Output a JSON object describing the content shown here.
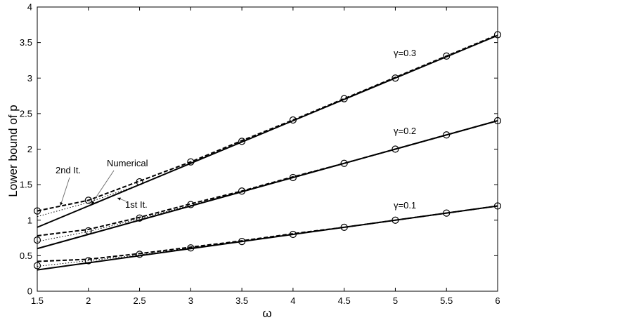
{
  "chart_data": {
    "type": "line",
    "xlabel": "ω",
    "ylabel": "Lower bound of p",
    "xlim": [
      1.5,
      6
    ],
    "ylim": [
      0,
      4
    ],
    "xticks": [
      "1.5",
      "2",
      "2.5",
      "3",
      "3.5",
      "4",
      "4.5",
      "5",
      "5.5",
      "6"
    ],
    "yticks": [
      "0",
      "0.5",
      "1",
      "1.5",
      "2",
      "2.5",
      "3",
      "3.5",
      "4"
    ],
    "grid": false,
    "x": [
      1.5,
      2,
      2.5,
      3,
      3.5,
      4,
      4.5,
      5,
      5.5,
      6
    ],
    "groups": [
      {
        "gamma_label": "γ=0.3",
        "numerical": [
          0.9,
          1.2,
          1.5,
          1.8,
          2.1,
          2.4,
          2.7,
          3.0,
          3.3,
          3.6
        ],
        "first_it": [
          1.05,
          1.25,
          1.5,
          1.8,
          2.1,
          2.4,
          2.7,
          3.0,
          3.3,
          3.6
        ],
        "second_it": [
          1.13,
          1.28,
          1.55,
          1.82,
          2.12,
          2.41,
          2.71,
          3.01,
          3.31,
          3.61
        ],
        "markers": [
          1.13,
          1.28,
          1.54,
          1.82,
          2.11,
          2.41,
          2.71,
          3.0,
          3.31,
          3.61
        ]
      },
      {
        "gamma_label": "γ=0.2",
        "numerical": [
          0.6,
          0.8,
          1.0,
          1.2,
          1.4,
          1.6,
          1.8,
          2.0,
          2.2,
          2.4
        ],
        "first_it": [
          0.7,
          0.84,
          1.02,
          1.21,
          1.4,
          1.6,
          1.8,
          2.0,
          2.2,
          2.4
        ],
        "second_it": [
          0.78,
          0.87,
          1.04,
          1.23,
          1.41,
          1.61,
          1.8,
          2.0,
          2.2,
          2.4
        ],
        "markers": [
          0.72,
          0.85,
          1.03,
          1.22,
          1.41,
          1.6,
          1.8,
          2.0,
          2.2,
          2.4
        ]
      },
      {
        "gamma_label": "γ=0.1",
        "numerical": [
          0.3,
          0.4,
          0.5,
          0.6,
          0.7,
          0.8,
          0.9,
          1.0,
          1.1,
          1.2
        ],
        "first_it": [
          0.35,
          0.43,
          0.51,
          0.61,
          0.7,
          0.8,
          0.9,
          1.0,
          1.1,
          1.2
        ],
        "second_it": [
          0.42,
          0.45,
          0.53,
          0.62,
          0.71,
          0.81,
          0.9,
          1.0,
          1.1,
          1.2
        ],
        "markers": [
          0.36,
          0.43,
          0.52,
          0.61,
          0.7,
          0.8,
          0.9,
          1.0,
          1.1,
          1.2
        ]
      }
    ],
    "annotations": {
      "numerical": "Numerical",
      "second_it": "2nd It.",
      "first_it": "1st It."
    }
  }
}
